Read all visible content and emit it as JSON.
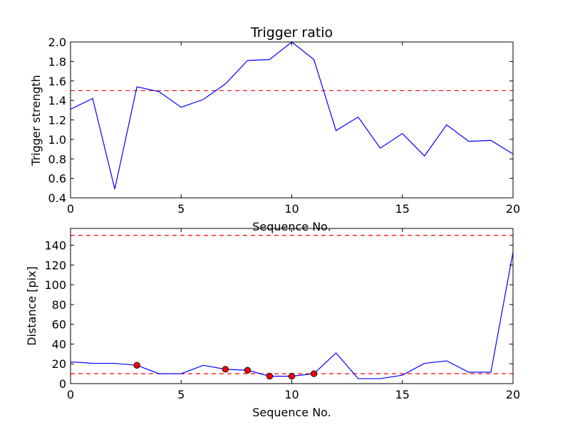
{
  "chart_data": [
    {
      "type": "line",
      "title": "Trigger ratio",
      "xlabel": "Sequence No.",
      "ylabel": "Trigger strength",
      "xlim": [
        0,
        20
      ],
      "ylim": [
        0.4,
        2.0
      ],
      "xticks": [
        "0",
        "5",
        "10",
        "15",
        "20"
      ],
      "yticks": [
        "0.4",
        "0.6",
        "0.8",
        "1.0",
        "1.2",
        "1.4",
        "1.6",
        "1.8",
        "2.0"
      ],
      "grid": false,
      "series": [
        {
          "color": "#0000ff",
          "x": [
            0,
            1,
            2,
            3,
            4,
            5,
            6,
            7,
            8,
            9,
            10,
            11,
            12,
            13,
            14,
            15,
            16,
            17,
            18,
            19,
            20
          ],
          "y": [
            1.31,
            1.42,
            0.49,
            1.54,
            1.49,
            1.33,
            1.41,
            1.57,
            1.81,
            1.82,
            2.0,
            1.82,
            1.09,
            1.23,
            0.91,
            1.06,
            0.83,
            1.15,
            0.98,
            0.99,
            0.85
          ]
        }
      ],
      "hlines": [
        {
          "y": 1.5,
          "color": "#ff0000",
          "style": "dashed"
        }
      ]
    },
    {
      "type": "line",
      "title": "",
      "xlabel": "Sequence No.",
      "ylabel": "Distance [pix]",
      "xlim": [
        0,
        20
      ],
      "ylim": [
        0,
        157
      ],
      "xticks": [
        "0",
        "5",
        "10",
        "15",
        "20"
      ],
      "yticks": [
        "0",
        "20",
        "40",
        "60",
        "80",
        "100",
        "120",
        "140"
      ],
      "grid": false,
      "series": [
        {
          "color": "#0000ff",
          "x": [
            0,
            1,
            2,
            3,
            4,
            5,
            6,
            7,
            8,
            9,
            10,
            11,
            12,
            13,
            14,
            15,
            16,
            17,
            18,
            19,
            20
          ],
          "y": [
            22,
            20.5,
            20.5,
            18.5,
            10,
            10,
            18.5,
            14.5,
            13.5,
            7.5,
            7.5,
            10,
            31,
            5,
            5,
            8.5,
            20.5,
            23,
            11.5,
            11.5,
            133
          ]
        }
      ],
      "markers": {
        "color": "#ff0000",
        "x": [
          3,
          7,
          8,
          9,
          10,
          11
        ],
        "y": [
          18.5,
          14.5,
          13.5,
          7.5,
          7.5,
          10
        ]
      },
      "hlines": [
        {
          "y": 150,
          "color": "#ff0000",
          "style": "dashed"
        },
        {
          "y": 10,
          "color": "#ff0000",
          "style": "dashed"
        }
      ]
    }
  ]
}
